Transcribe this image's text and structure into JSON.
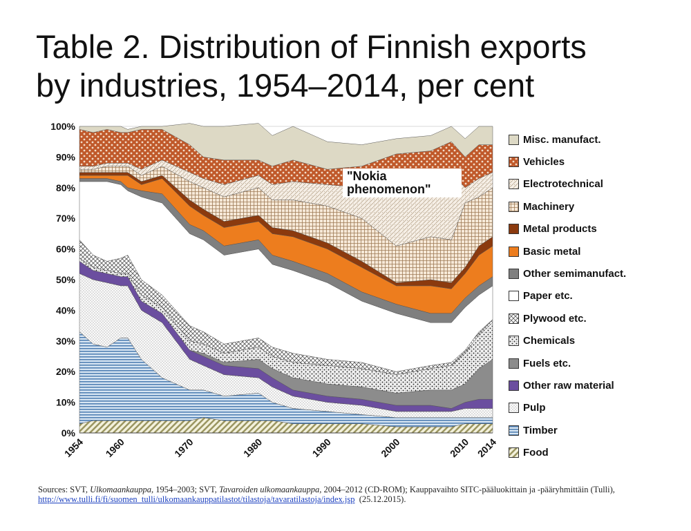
{
  "title_line1": "Table 2. Distribution of Finnish exports",
  "title_line2": "by industries, 1954–2014, per cent",
  "annotation_line1": "\"Nokia",
  "annotation_line2": "phenomenon\"",
  "source": {
    "prefix": "Sources: SVT, ",
    "pub1": "Ulkomaankauppa",
    "mid1": ", 1954–2003; SVT, ",
    "pub2": "Tavaroiden ulkomaankauppa",
    "mid2": ", 2004–2012 (CD-ROM); Kauppavaihto SITC-pääluokittain ja -pääryhmittäin (Tulli),",
    "link": "http://www.tulli.fi/fi/suomen_tulli/ulkomaankauppatilastot/tilastoja/tavaratilastoja/index.jsp",
    "date": "(25.12.2015)."
  },
  "chart_data": {
    "type": "area",
    "stacked": true,
    "title": "Table 2. Distribution of Finnish exports by industries, 1954–2014, per cent",
    "xlabel": "",
    "ylabel": "",
    "xlim": [
      1954,
      2014
    ],
    "ylim": [
      0,
      100
    ],
    "y_ticks": [
      "0%",
      "10%",
      "20%",
      "30%",
      "40%",
      "50%",
      "60%",
      "70%",
      "80%",
      "90%",
      "100%"
    ],
    "x_ticks": [
      1954,
      1960,
      1970,
      1980,
      1990,
      2000,
      2010,
      2014
    ],
    "x": [
      1954,
      1956,
      1958,
      1960,
      1961,
      1963,
      1966,
      1970,
      1972,
      1975,
      1980,
      1982,
      1985,
      1990,
      1995,
      2000,
      2005,
      2008,
      2010,
      2012,
      2014
    ],
    "series": [
      {
        "name": "Food",
        "color": "#c2bf8c",
        "values": [
          3,
          4,
          4,
          4,
          4,
          4,
          4,
          4,
          5,
          4,
          4,
          4,
          3,
          3,
          3,
          2,
          2,
          2,
          3,
          3,
          3
        ]
      },
      {
        "name": "Timber",
        "color": "#8fb4d6",
        "values": [
          30,
          25,
          24,
          27,
          27,
          20,
          14,
          10,
          9,
          8,
          9,
          6,
          5,
          4,
          3,
          3,
          3,
          3,
          2,
          2,
          2
        ]
      },
      {
        "name": "Pulp",
        "color": "#f1f1f1",
        "values": [
          19,
          21,
          21,
          17,
          17,
          16,
          18,
          10,
          8,
          7,
          5,
          5,
          4,
          3,
          3,
          2,
          2,
          2,
          3,
          3,
          3
        ]
      },
      {
        "name": "Other raw material",
        "color": "#6b4e9f",
        "values": [
          4,
          3,
          3,
          3,
          3,
          3,
          3,
          3,
          3,
          3,
          3,
          3,
          2,
          2,
          2,
          2,
          2,
          1,
          2,
          3,
          3
        ]
      },
      {
        "name": "Fuels etc.",
        "color": "#8c8c8c",
        "values": [
          0,
          0,
          0,
          0,
          0,
          0,
          0,
          0,
          1,
          1,
          3,
          3,
          4,
          4,
          4,
          4,
          5,
          6,
          6,
          10,
          13
        ]
      },
      {
        "name": "Chemicals",
        "color": "#d3d3d3",
        "values": [
          1,
          1,
          1,
          1,
          1,
          2,
          2,
          3,
          3,
          3,
          4,
          4,
          5,
          6,
          6,
          6,
          7,
          8,
          10,
          11,
          12
        ]
      },
      {
        "name": "Plywood etc.",
        "color": "#e7e7e7",
        "values": [
          6,
          4,
          3,
          5,
          6,
          5,
          4,
          5,
          4,
          3,
          3,
          3,
          3,
          2,
          2,
          1,
          1,
          1,
          1,
          1,
          1
        ]
      },
      {
        "name": "Paper etc.",
        "color": "#ffffff",
        "values": [
          19,
          24,
          26,
          24,
          21,
          27,
          30,
          30,
          30,
          29,
          29,
          27,
          27,
          25,
          20,
          19,
          14,
          13,
          14,
          12,
          11
        ]
      },
      {
        "name": "Other semimanufact.",
        "color": "#7f7f7f",
        "values": [
          1,
          1,
          1,
          1,
          1,
          2,
          3,
          3,
          3,
          3,
          3,
          3,
          3,
          3,
          3,
          3,
          3,
          3,
          3,
          3,
          3
        ]
      },
      {
        "name": "Basic metal",
        "color": "#ed7d1e",
        "values": [
          1,
          1,
          1,
          2,
          4,
          2,
          5,
          6,
          5,
          6,
          6,
          7,
          8,
          8,
          8,
          6,
          9,
          8,
          8,
          10,
          10
        ]
      },
      {
        "name": "Metal products",
        "color": "#8b3a0e",
        "values": [
          1,
          1,
          1,
          1,
          1,
          1,
          1,
          2,
          2,
          2,
          2,
          2,
          2,
          2,
          2,
          1,
          2,
          2,
          2,
          3,
          3
        ]
      },
      {
        "name": "Machinery",
        "color": "#ead7c0",
        "values": [
          1,
          1,
          2,
          2,
          2,
          2,
          3,
          6,
          7,
          8,
          9,
          9,
          10,
          12,
          14,
          12,
          14,
          14,
          21,
          16,
          16
        ]
      },
      {
        "name": "Electrotechnical",
        "color": "#f1e8dc",
        "values": [
          1,
          1,
          1,
          1,
          1,
          2,
          2,
          3,
          3,
          4,
          4,
          5,
          6,
          7,
          10,
          20,
          21,
          22,
          5,
          6,
          5
        ]
      },
      {
        "name": "Vehicles",
        "color": "#c86a3a",
        "values": [
          12,
          11,
          11,
          10,
          10,
          13,
          10,
          9,
          7,
          8,
          5,
          6,
          7,
          5,
          7,
          10,
          7,
          10,
          10,
          11,
          9
        ]
      },
      {
        "name": "Misc. manufact.",
        "color": "#ddd9c5",
        "values": [
          1,
          2,
          1,
          2,
          1,
          1,
          1,
          7,
          10,
          11,
          12,
          10,
          11,
          9,
          7,
          5,
          5,
          5,
          6,
          6,
          6
        ]
      }
    ],
    "legend": {
      "placement": "right",
      "order": [
        "Misc. manufact.",
        "Vehicles",
        "Electrotechnical",
        "Machinery",
        "Metal products",
        "Basic metal",
        "Other semimanufact.",
        "Paper etc.",
        "Plywood etc.",
        "Chemicals",
        "Fuels etc.",
        "Other raw material",
        "Pulp",
        "Timber",
        "Food"
      ]
    }
  }
}
